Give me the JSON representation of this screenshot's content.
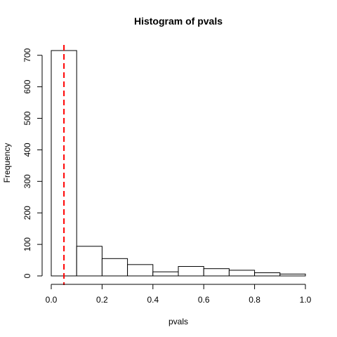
{
  "chart_data": {
    "type": "bar",
    "title": "Histogram of pvals",
    "xlabel": "pvals",
    "ylabel": "Frequency",
    "bins": [
      {
        "start": 0.0,
        "end": 0.1,
        "count": 715
      },
      {
        "start": 0.1,
        "end": 0.2,
        "count": 94
      },
      {
        "start": 0.2,
        "end": 0.3,
        "count": 55
      },
      {
        "start": 0.3,
        "end": 0.4,
        "count": 36
      },
      {
        "start": 0.4,
        "end": 0.5,
        "count": 13
      },
      {
        "start": 0.5,
        "end": 0.6,
        "count": 30
      },
      {
        "start": 0.6,
        "end": 0.7,
        "count": 23
      },
      {
        "start": 0.7,
        "end": 0.8,
        "count": 18
      },
      {
        "start": 0.8,
        "end": 0.9,
        "count": 10
      },
      {
        "start": 0.9,
        "end": 1.0,
        "count": 6
      }
    ],
    "xlim": [
      0,
      1
    ],
    "ylim": [
      0,
      715
    ],
    "x_ticks": [
      "0.0",
      "0.2",
      "0.4",
      "0.6",
      "0.8",
      "1.0"
    ],
    "y_ticks": [
      "0",
      "100",
      "200",
      "300",
      "400",
      "500",
      "600",
      "700"
    ],
    "reference_line": {
      "x": 0.05,
      "color": "#ff0000",
      "style": "dashed"
    },
    "grid": false,
    "bar_fill": "#ffffff",
    "bar_stroke": "#000000"
  }
}
